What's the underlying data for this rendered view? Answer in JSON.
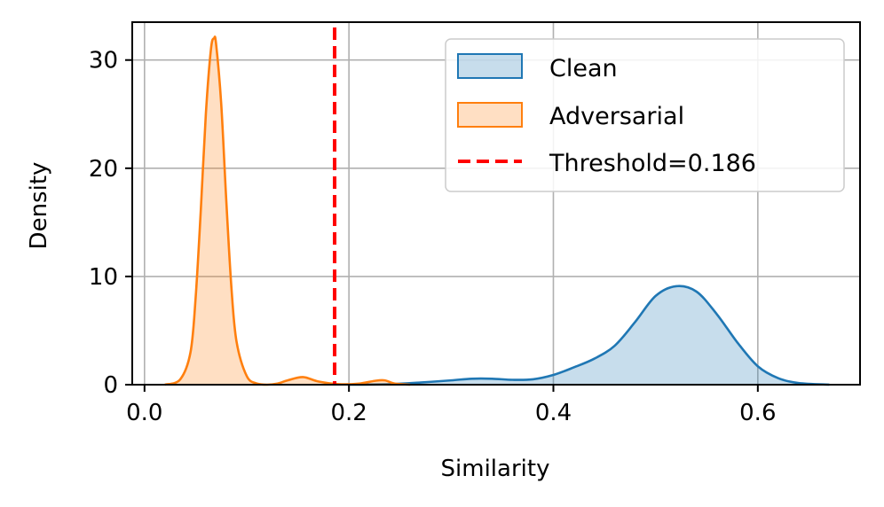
{
  "chart_data": {
    "type": "area",
    "xlabel": "Similarity",
    "ylabel": "Density",
    "xlim": [
      -0.012,
      0.7
    ],
    "ylim": [
      0,
      33.5
    ],
    "x_ticks": [
      0.0,
      0.2,
      0.4,
      0.6
    ],
    "x_tick_labels": [
      "0.0",
      "0.2",
      "0.4",
      "0.6"
    ],
    "y_ticks": [
      0,
      10,
      20,
      30
    ],
    "y_tick_labels": [
      "0",
      "10",
      "20",
      "30"
    ],
    "grid": true,
    "legend_position": "upper right",
    "series": [
      {
        "name": "Clean",
        "color": "#1f77b4",
        "fill_alpha": 0.25,
        "x": [
          0.2,
          0.24,
          0.27,
          0.3,
          0.32,
          0.34,
          0.36,
          0.38,
          0.4,
          0.42,
          0.44,
          0.46,
          0.48,
          0.5,
          0.52,
          0.54,
          0.56,
          0.58,
          0.6,
          0.62,
          0.64,
          0.67
        ],
        "y": [
          0.0,
          0.05,
          0.2,
          0.4,
          0.55,
          0.55,
          0.45,
          0.5,
          0.9,
          1.6,
          2.4,
          3.6,
          5.8,
          8.2,
          9.1,
          8.6,
          6.5,
          3.9,
          1.7,
          0.6,
          0.15,
          0.0
        ]
      },
      {
        "name": "Adversarial",
        "color": "#ff7f0e",
        "fill_alpha": 0.25,
        "x": [
          0.02,
          0.035,
          0.045,
          0.05,
          0.055,
          0.06,
          0.065,
          0.068,
          0.07,
          0.075,
          0.08,
          0.085,
          0.09,
          0.1,
          0.11,
          0.12,
          0.13,
          0.14,
          0.155,
          0.17,
          0.19,
          0.21,
          0.225,
          0.235,
          0.245,
          0.26
        ],
        "y": [
          0.0,
          0.5,
          3.0,
          8.0,
          16.0,
          25.0,
          31.0,
          32.0,
          31.5,
          26.0,
          17.0,
          9.0,
          4.0,
          0.8,
          0.1,
          0.0,
          0.1,
          0.4,
          0.7,
          0.3,
          0.05,
          0.1,
          0.35,
          0.4,
          0.1,
          0.0
        ]
      }
    ],
    "threshold": {
      "name": "Threshold=0.186",
      "x": 0.186,
      "color": "#ff0000",
      "style": "dashed"
    }
  }
}
